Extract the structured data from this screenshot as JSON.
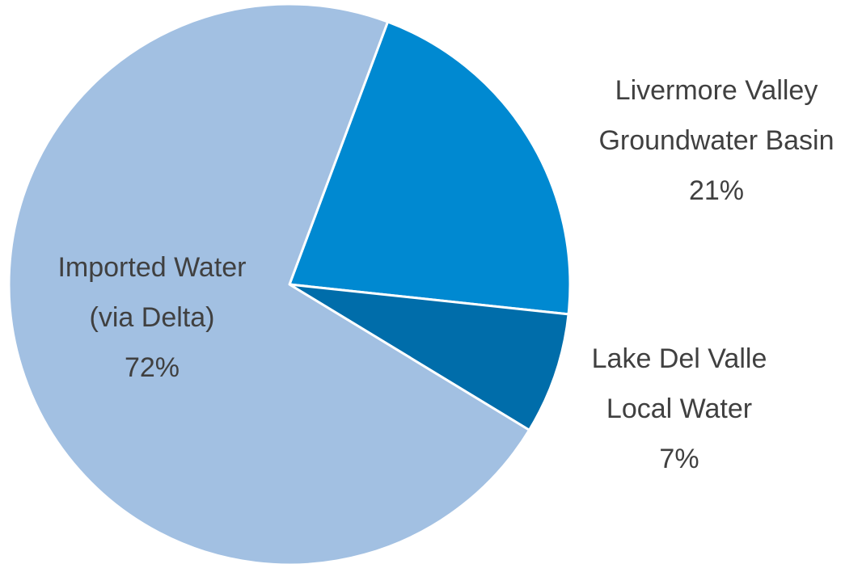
{
  "chart_data": {
    "type": "pie",
    "slices": [
      {
        "label_lines": [
          "Livermore Valley",
          "Groundwater Basin",
          "21%"
        ],
        "value": 21,
        "color": "#0089D1"
      },
      {
        "label_lines": [
          "Lake Del Valle",
          "Local Water",
          "7%"
        ],
        "value": 7,
        "color": "#006DAA"
      },
      {
        "label_lines": [
          "Imported Water",
          "(via Delta)",
          "72%"
        ],
        "value": 72,
        "color": "#A2C0E2"
      }
    ]
  }
}
